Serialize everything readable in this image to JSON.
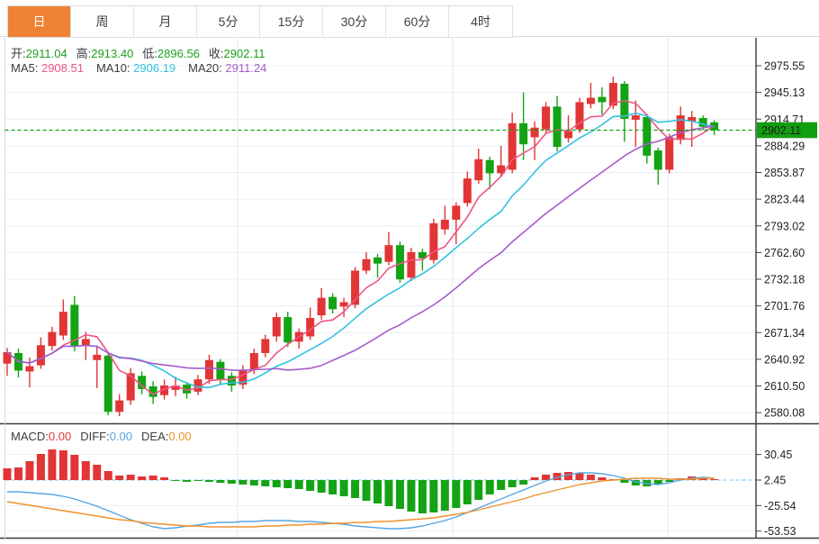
{
  "tabs": {
    "items": [
      {
        "label": "日",
        "active": true
      },
      {
        "label": "周",
        "active": false
      },
      {
        "label": "月",
        "active": false
      },
      {
        "label": "5分",
        "active": false
      },
      {
        "label": "15分",
        "active": false
      },
      {
        "label": "30分",
        "active": false
      },
      {
        "label": "60分",
        "active": false
      },
      {
        "label": "4时",
        "active": false
      }
    ]
  },
  "overlay": {
    "ohlc": [
      {
        "label": "开:",
        "value": "2911.04"
      },
      {
        "label": "高:",
        "value": "2913.40"
      },
      {
        "label": "低:",
        "value": "2896.56"
      },
      {
        "label": "收:",
        "value": "2902.11"
      }
    ],
    "ma": [
      {
        "label": "MA5:",
        "value": "2908.51"
      },
      {
        "label": "MA10:",
        "value": "2906.19"
      },
      {
        "label": "MA20:",
        "value": "2911.24"
      }
    ],
    "macd": [
      {
        "label": "MACD:",
        "value": "0.00"
      },
      {
        "label": "DIFF:",
        "value": "0.00"
      },
      {
        "label": "DEA:",
        "value": "0.00"
      }
    ]
  },
  "price_axis": {
    "labels": [
      "2975.55",
      "2945.13",
      "2914.71",
      "2884.29",
      "2853.87",
      "2823.44",
      "2793.02",
      "2762.60",
      "2732.18",
      "2701.76",
      "2671.34",
      "2640.92",
      "2610.50",
      "2580.08"
    ],
    "current": "2902.11"
  },
  "macd_axis": {
    "labels": [
      "30.45",
      "2.45",
      "-25.54",
      "-53.53"
    ]
  },
  "colors": {
    "up": "#e23535",
    "down": "#14a314",
    "ma5": "#ee5586",
    "ma10": "#35c1e0",
    "ma20": "#a75ccc",
    "diff_line": "#55a5e3",
    "dea_line": "#f0912d",
    "tab_accent": "#ef8234",
    "price_flag_bg": "#119e11",
    "current_line": "#0da30d",
    "macd_zero_line": "#8ecdf0",
    "grid": "#e9eff6",
    "date_grid": "#dfe8f2",
    "separator": "#3a3a3a",
    "left_border": "#d8d8d8"
  },
  "chart_data": {
    "type": "candlestick+macd",
    "title": "",
    "price_range": [
      2580.08,
      2975.55
    ],
    "macd_range": [
      -53.53,
      30.45
    ],
    "legend": [
      "MA5",
      "MA10",
      "MA20",
      "MACD",
      "DIFF",
      "DEA"
    ],
    "current_price": 2902.11,
    "last_candle": {
      "open": 2911.04,
      "high": 2913.4,
      "low": 2896.56,
      "close": 2902.11
    },
    "date_grid_x": [
      264,
      503,
      742
    ],
    "candles": [
      [
        2636,
        2654,
        2622,
        2649
      ],
      [
        2648,
        2653,
        2620,
        2628
      ],
      [
        2627,
        2643,
        2609,
        2633
      ],
      [
        2634,
        2666,
        2630,
        2657
      ],
      [
        2656,
        2678,
        2651,
        2672
      ],
      [
        2668,
        2709,
        2663,
        2695
      ],
      [
        2703,
        2713,
        2650,
        2656
      ],
      [
        2656,
        2672,
        2640,
        2664
      ],
      [
        2640,
        2656,
        2608,
        2646
      ],
      [
        2645,
        2649,
        2577,
        2581
      ],
      [
        2581,
        2601,
        2576,
        2594
      ],
      [
        2594,
        2631,
        2589,
        2625
      ],
      [
        2622,
        2627,
        2601,
        2607
      ],
      [
        2610,
        2616,
        2590,
        2598
      ],
      [
        2600,
        2618,
        2595,
        2611
      ],
      [
        2606,
        2621,
        2599,
        2611
      ],
      [
        2612,
        2615,
        2596,
        2602
      ],
      [
        2604,
        2623,
        2600,
        2618
      ],
      [
        2618,
        2646,
        2613,
        2640
      ],
      [
        2638,
        2641,
        2612,
        2618
      ],
      [
        2622,
        2626,
        2604,
        2611
      ],
      [
        2612,
        2634,
        2607,
        2629
      ],
      [
        2629,
        2653,
        2624,
        2648
      ],
      [
        2648,
        2669,
        2643,
        2664
      ],
      [
        2667,
        2694,
        2661,
        2689
      ],
      [
        2689,
        2695,
        2655,
        2660
      ],
      [
        2661,
        2676,
        2653,
        2672
      ],
      [
        2667,
        2700,
        2663,
        2688
      ],
      [
        2691,
        2722,
        2686,
        2711
      ],
      [
        2712,
        2716,
        2693,
        2698
      ],
      [
        2701,
        2711,
        2689,
        2706
      ],
      [
        2703,
        2746,
        2699,
        2742
      ],
      [
        2742,
        2763,
        2738,
        2755
      ],
      [
        2757,
        2761,
        2734,
        2750
      ],
      [
        2752,
        2786,
        2748,
        2771
      ],
      [
        2771,
        2775,
        2728,
        2732
      ],
      [
        2734,
        2768,
        2730,
        2763
      ],
      [
        2763,
        2767,
        2742,
        2756
      ],
      [
        2754,
        2801,
        2750,
        2796
      ],
      [
        2789,
        2816,
        2783,
        2800
      ],
      [
        2800,
        2820,
        2772,
        2816
      ],
      [
        2819,
        2855,
        2815,
        2847
      ],
      [
        2845,
        2881,
        2841,
        2869
      ],
      [
        2868,
        2872,
        2835,
        2853
      ],
      [
        2853,
        2884,
        2849,
        2862
      ],
      [
        2857,
        2922,
        2853,
        2910
      ],
      [
        2910,
        2945,
        2868,
        2886
      ],
      [
        2894,
        2912,
        2868,
        2905
      ],
      [
        2903,
        2934,
        2899,
        2929
      ],
      [
        2929,
        2941,
        2878,
        2883
      ],
      [
        2893,
        2919,
        2888,
        2901
      ],
      [
        2903,
        2939,
        2899,
        2934
      ],
      [
        2932,
        2956,
        2927,
        2939
      ],
      [
        2940,
        2951,
        2920,
        2934
      ],
      [
        2930,
        2963,
        2926,
        2956
      ],
      [
        2955,
        2958,
        2889,
        2915
      ],
      [
        2914,
        2936,
        2883,
        2919
      ],
      [
        2917,
        2921,
        2864,
        2873
      ],
      [
        2879,
        2882,
        2840,
        2857
      ],
      [
        2857,
        2898,
        2853,
        2894
      ],
      [
        2891,
        2929,
        2886,
        2919
      ],
      [
        2912,
        2924,
        2883,
        2917
      ],
      [
        2916,
        2919,
        2902,
        2906
      ],
      [
        2911.04,
        2913.4,
        2896.56,
        2902.11
      ]
    ],
    "macd": {
      "histogram": [
        13,
        14,
        21,
        29,
        34,
        33,
        28,
        21,
        17,
        10,
        5,
        6,
        4,
        5,
        3,
        -1,
        -2,
        -1,
        -2,
        -3,
        -4,
        -5,
        -6,
        -7,
        -8,
        -9,
        -10,
        -12,
        -14,
        -16,
        -18,
        -20,
        -23,
        -26,
        -29,
        -32,
        -35,
        -37,
        -36,
        -34,
        -31,
        -27,
        -22,
        -16,
        -11,
        -8,
        -5,
        3,
        6,
        8,
        9,
        8,
        6,
        3,
        1,
        -3,
        -6,
        -7,
        -5,
        -2,
        2,
        4,
        3,
        1
      ],
      "diff": [
        -13,
        -13,
        -14,
        -15,
        -16,
        -18,
        -21,
        -25,
        -29,
        -34,
        -39,
        -44,
        -48,
        -52,
        -54,
        -53,
        -51,
        -50,
        -48,
        -47,
        -47,
        -46,
        -46,
        -45,
        -45,
        -45,
        -46,
        -46,
        -47,
        -48,
        -49,
        -51,
        -52,
        -53,
        -54,
        -54,
        -53,
        -51,
        -48,
        -45,
        -41,
        -36,
        -31,
        -26,
        -21,
        -16,
        -11,
        -6,
        -1,
        3,
        6,
        8,
        8,
        7,
        5,
        2,
        -2,
        -4,
        -5,
        -3,
        0,
        2,
        3,
        2
      ],
      "dea": [
        -24,
        -26,
        -28,
        -30,
        -32,
        -34,
        -36,
        -38,
        -40,
        -42,
        -44,
        -45,
        -47,
        -48,
        -49,
        -50,
        -51,
        -51,
        -52,
        -52,
        -52,
        -52,
        -52,
        -51,
        -51,
        -50,
        -50,
        -49,
        -49,
        -48,
        -48,
        -47,
        -47,
        -46,
        -46,
        -45,
        -44,
        -43,
        -42,
        -40,
        -38,
        -36,
        -33,
        -30,
        -27,
        -24,
        -21,
        -17,
        -14,
        -11,
        -8,
        -5,
        -3,
        -1,
        0,
        1,
        2,
        2,
        2,
        1,
        1,
        1,
        2,
        2
      ]
    }
  }
}
